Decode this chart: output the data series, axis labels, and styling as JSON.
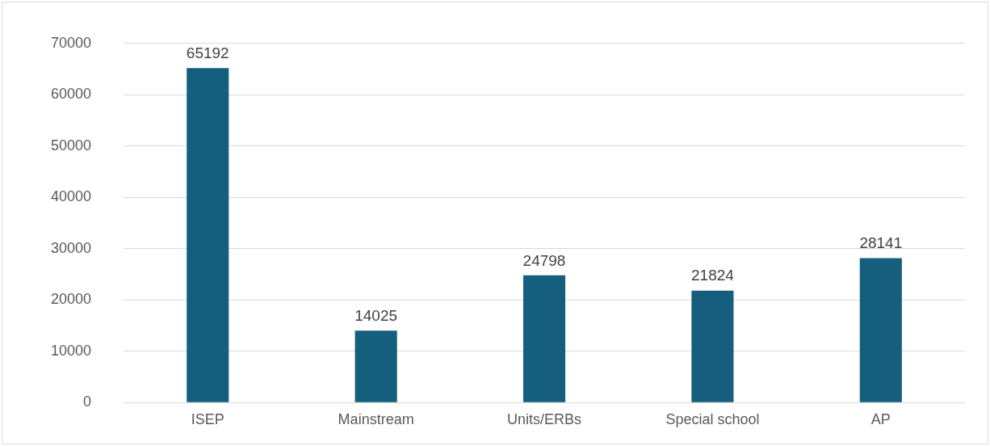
{
  "chart_data": {
    "type": "bar",
    "categories": [
      "ISEP",
      "Mainstream",
      "Units/ERBs",
      "Special school",
      "AP"
    ],
    "values": [
      65192,
      14025,
      24798,
      21824,
      28141
    ],
    "color": "#155e7e",
    "ylim": [
      0,
      70000
    ],
    "yticks": [
      0,
      10000,
      20000,
      30000,
      40000,
      50000,
      60000,
      70000
    ],
    "grid": "y",
    "legend": false,
    "data_labels": true
  }
}
